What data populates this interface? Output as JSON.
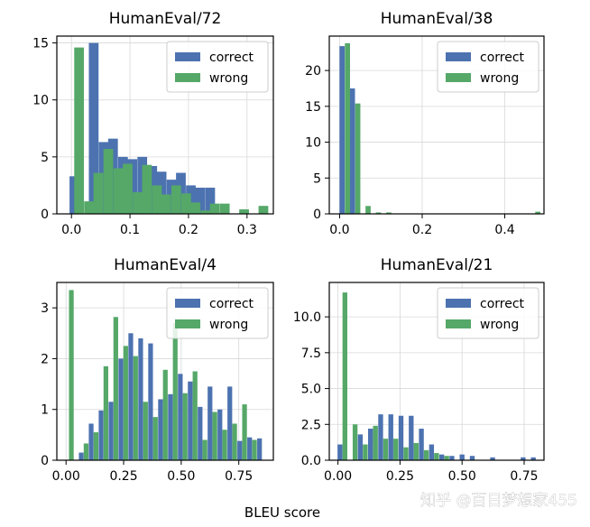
{
  "figure": {
    "xlabel": "BLEU score",
    "watermark": "知乎 @百日梦想家455"
  },
  "colors": {
    "correct": "#4c72b0",
    "wrong": "#55a868",
    "grid": "#d8d8d8",
    "axis": "#000000"
  },
  "chart_data": [
    {
      "type": "bar",
      "title": "HumanEval/72",
      "xlabel": "",
      "ylabel": "",
      "xlim": [
        -0.025,
        0.345
      ],
      "ylim": [
        0,
        15.6
      ],
      "xticks": [
        0.0,
        0.1,
        0.2,
        0.3
      ],
      "xtick_labels": [
        "0.0",
        "0.1",
        "0.2",
        "0.3"
      ],
      "yticks": [
        0,
        5,
        10,
        15
      ],
      "ytick_labels": [
        "0",
        "5",
        "10",
        "15"
      ],
      "grid": true,
      "legend": "top-right",
      "bin_width": 0.0166,
      "series": [
        {
          "name": "correct",
          "x": [
            0.005,
            0.022,
            0.038,
            0.055,
            0.071,
            0.088,
            0.104,
            0.121,
            0.138,
            0.154,
            0.171,
            0.187,
            0.204,
            0.22,
            0.237
          ],
          "values": [
            3.3,
            0,
            15.0,
            6.3,
            6.6,
            5.0,
            4.8,
            5.0,
            4.2,
            3.7,
            3.0,
            3.6,
            2.5,
            2.3,
            2.3
          ]
        },
        {
          "name": "wrong",
          "x": [
            0.013,
            0.03,
            0.046,
            0.063,
            0.08,
            0.096,
            0.113,
            0.129,
            0.146,
            0.162,
            0.179,
            0.196,
            0.212,
            0.229,
            0.245,
            0.262,
            0.278,
            0.295,
            0.311,
            0.328
          ],
          "values": [
            14.6,
            1.1,
            3.6,
            5.7,
            4.0,
            4.4,
            1.9,
            4.3,
            2.5,
            1.7,
            2.5,
            1.8,
            1.0,
            0.3,
            0.9,
            0.9,
            0,
            0.4,
            0,
            0.7
          ]
        }
      ]
    },
    {
      "type": "bar",
      "title": "HumanEval/38",
      "xlabel": "",
      "ylabel": "",
      "xlim": [
        -0.025,
        0.495
      ],
      "ylim": [
        0,
        24.8
      ],
      "xticks": [
        0.0,
        0.2,
        0.4
      ],
      "xtick_labels": [
        "0.0",
        "0.2",
        "0.4"
      ],
      "yticks": [
        0,
        5,
        10,
        15,
        20
      ],
      "ytick_labels": [
        "0",
        "5",
        "10",
        "15",
        "20"
      ],
      "grid": true,
      "legend": "top-right",
      "bin_width": 0.0125,
      "series": [
        {
          "name": "correct",
          "x": [
            0.006,
            0.031
          ],
          "values": [
            23.4,
            17.5
          ]
        },
        {
          "name": "wrong",
          "x": [
            0.019,
            0.044,
            0.069,
            0.094,
            0.119,
            0.48
          ],
          "values": [
            23.8,
            15.4,
            1.1,
            0.2,
            0.2,
            0.3
          ]
        }
      ]
    },
    {
      "type": "bar",
      "title": "HumanEval/4",
      "xlabel": "",
      "ylabel": "",
      "xlim": [
        -0.04,
        0.9
      ],
      "ylim": [
        0,
        3.5
      ],
      "xticks": [
        0.0,
        0.25,
        0.5,
        0.75
      ],
      "xtick_labels": [
        "0.00",
        "0.25",
        "0.50",
        "0.75"
      ],
      "yticks": [
        0,
        1,
        2,
        3
      ],
      "ytick_labels": [
        "0",
        "1",
        "2",
        "3"
      ],
      "grid": true,
      "legend": "top-right",
      "bin_width": 0.0205,
      "series": [
        {
          "name": "correct",
          "x": [
            0.066,
            0.109,
            0.152,
            0.195,
            0.238,
            0.281,
            0.324,
            0.367,
            0.41,
            0.453,
            0.496,
            0.539,
            0.582,
            0.625,
            0.668,
            0.711,
            0.754,
            0.797,
            0.84
          ],
          "values": [
            0.15,
            0.72,
            0.98,
            1.15,
            2.0,
            2.5,
            2.4,
            2.3,
            1.2,
            1.3,
            1.7,
            1.55,
            1.05,
            1.45,
            1.0,
            1.45,
            0.38,
            0.45,
            0.43
          ]
        },
        {
          "name": "wrong",
          "x": [
            0.023,
            0.087,
            0.13,
            0.173,
            0.216,
            0.259,
            0.302,
            0.345,
            0.388,
            0.431,
            0.474,
            0.517,
            0.56,
            0.603,
            0.646,
            0.689,
            0.732,
            0.775,
            0.818
          ],
          "values": [
            3.35,
            0.33,
            0.55,
            1.85,
            2.82,
            2.25,
            2.05,
            1.15,
            0.85,
            1.78,
            2.7,
            1.32,
            1.75,
            0.4,
            0.95,
            0.6,
            0.72,
            1.1,
            0.4
          ]
        }
      ]
    },
    {
      "type": "bar",
      "title": "HumanEval/21",
      "xlabel": "",
      "ylabel": "",
      "xlim": [
        -0.035,
        0.83
      ],
      "ylim": [
        0,
        12.4
      ],
      "xticks": [
        0.0,
        0.25,
        0.5,
        0.75
      ],
      "xtick_labels": [
        "0.00",
        "0.25",
        "0.50",
        "0.75"
      ],
      "yticks": [
        0.0,
        2.5,
        5.0,
        7.5,
        10.0
      ],
      "ytick_labels": [
        "0.0",
        "2.5",
        "5.0",
        "7.5",
        "10.0"
      ],
      "grid": true,
      "legend": "top-right",
      "bin_width": 0.0195,
      "series": [
        {
          "name": "correct",
          "x": [
            0.008,
            0.049,
            0.09,
            0.131,
            0.172,
            0.213,
            0.254,
            0.295,
            0.336,
            0.377,
            0.418,
            0.459,
            0.5,
            0.541,
            0.623,
            0.746,
            0.787
          ],
          "values": [
            1.1,
            0,
            1.8,
            2.2,
            3.2,
            3.2,
            3.1,
            3.1,
            2.2,
            1.1,
            0.4,
            0.3,
            0.4,
            0.3,
            0.2,
            0.2,
            0.2
          ]
        },
        {
          "name": "wrong",
          "x": [
            0.028,
            0.069,
            0.11,
            0.151,
            0.192,
            0.233,
            0.274,
            0.315,
            0.356,
            0.397,
            0.438
          ],
          "values": [
            11.7,
            2.5,
            1.1,
            2.4,
            1.5,
            1.5,
            0.9,
            1.2,
            0.7,
            0.5,
            0.3
          ]
        }
      ]
    }
  ]
}
